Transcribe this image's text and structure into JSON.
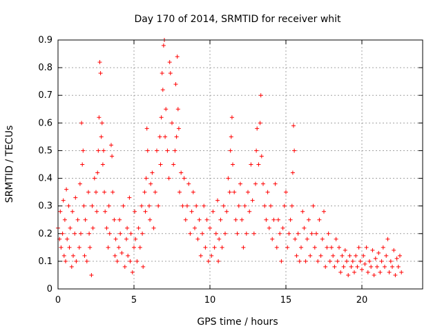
{
  "chart_data": {
    "type": "scatter",
    "title": "Day 170 of 2014, SRMTID for receiver whit",
    "xlabel": "GPS time / hours",
    "ylabel": "SRMTID / TECUs",
    "xlim": [
      0,
      24
    ],
    "ylim": [
      0,
      0.9
    ],
    "xticks": [
      "0",
      "5",
      "10",
      "15",
      "20"
    ],
    "yticks": [
      "0",
      "0.1",
      "0.2",
      "0.3",
      "0.4",
      "0.5",
      "0.6",
      "0.7",
      "0.8",
      "0.9"
    ],
    "grid": true,
    "marker": "+",
    "color": "#ff0000",
    "series": [
      {
        "name": "SRMTID",
        "points": [
          [
            0.0,
            0.22
          ],
          [
            0.1,
            0.18
          ],
          [
            0.15,
            0.28
          ],
          [
            0.2,
            0.15
          ],
          [
            0.3,
            0.2
          ],
          [
            0.35,
            0.32
          ],
          [
            0.4,
            0.12
          ],
          [
            0.45,
            0.25
          ],
          [
            0.5,
            0.1
          ],
          [
            0.55,
            0.36
          ],
          [
            0.6,
            0.18
          ],
          [
            0.7,
            0.3
          ],
          [
            0.75,
            0.15
          ],
          [
            0.8,
            0.22
          ],
          [
            0.9,
            0.08
          ],
          [
            0.95,
            0.28
          ],
          [
            1.0,
            0.12
          ],
          [
            1.1,
            0.2
          ],
          [
            1.15,
            0.33
          ],
          [
            1.2,
            0.1
          ],
          [
            1.3,
            0.25
          ],
          [
            1.4,
            0.15
          ],
          [
            1.45,
            0.38
          ],
          [
            1.5,
            0.2
          ],
          [
            1.55,
            0.6
          ],
          [
            1.6,
            0.45
          ],
          [
            1.65,
            0.5
          ],
          [
            1.7,
            0.3
          ],
          [
            1.75,
            0.12
          ],
          [
            1.8,
            0.25
          ],
          [
            1.9,
            0.1
          ],
          [
            2.0,
            0.35
          ],
          [
            2.05,
            0.2
          ],
          [
            2.1,
            0.15
          ],
          [
            2.2,
            0.05
          ],
          [
            2.25,
            0.3
          ],
          [
            2.3,
            0.22
          ],
          [
            2.4,
            0.4
          ],
          [
            2.5,
            0.35
          ],
          [
            2.55,
            0.28
          ],
          [
            2.6,
            0.42
          ],
          [
            2.65,
            0.5
          ],
          [
            2.7,
            0.62
          ],
          [
            2.75,
            0.82
          ],
          [
            2.8,
            0.78
          ],
          [
            2.85,
            0.55
          ],
          [
            2.9,
            0.6
          ],
          [
            2.95,
            0.45
          ],
          [
            3.0,
            0.5
          ],
          [
            3.05,
            0.35
          ],
          [
            3.1,
            0.28
          ],
          [
            3.2,
            0.22
          ],
          [
            3.3,
            0.15
          ],
          [
            3.35,
            0.3
          ],
          [
            3.4,
            0.2
          ],
          [
            3.5,
            0.52
          ],
          [
            3.55,
            0.48
          ],
          [
            3.6,
            0.35
          ],
          [
            3.7,
            0.25
          ],
          [
            3.75,
            0.12
          ],
          [
            3.8,
            0.18
          ],
          [
            3.9,
            0.1
          ],
          [
            4.0,
            0.15
          ],
          [
            4.05,
            0.25
          ],
          [
            4.1,
            0.2
          ],
          [
            4.2,
            0.13
          ],
          [
            4.3,
            0.3
          ],
          [
            4.4,
            0.08
          ],
          [
            4.5,
            0.18
          ],
          [
            4.55,
            0.22
          ],
          [
            4.6,
            0.12
          ],
          [
            4.7,
            0.33
          ],
          [
            4.75,
            0.1
          ],
          [
            4.8,
            0.2
          ],
          [
            4.9,
            0.06
          ],
          [
            5.0,
            0.15
          ],
          [
            5.05,
            0.28
          ],
          [
            5.1,
            0.18
          ],
          [
            5.2,
            0.1
          ],
          [
            5.3,
            0.22
          ],
          [
            5.4,
            0.15
          ],
          [
            5.5,
            0.3
          ],
          [
            5.55,
            0.2
          ],
          [
            5.6,
            0.08
          ],
          [
            5.7,
            0.35
          ],
          [
            5.75,
            0.28
          ],
          [
            5.8,
            0.4
          ],
          [
            5.85,
            0.58
          ],
          [
            5.9,
            0.5
          ],
          [
            6.0,
            0.3
          ],
          [
            6.05,
            0.25
          ],
          [
            6.1,
            0.38
          ],
          [
            6.2,
            0.42
          ],
          [
            6.3,
            0.22
          ],
          [
            6.4,
            0.35
          ],
          [
            6.5,
            0.5
          ],
          [
            6.6,
            0.3
          ],
          [
            6.7,
            0.55
          ],
          [
            6.75,
            0.45
          ],
          [
            6.8,
            0.62
          ],
          [
            6.85,
            0.78
          ],
          [
            6.9,
            0.72
          ],
          [
            6.95,
            0.88
          ],
          [
            7.0,
            0.9
          ],
          [
            7.05,
            0.55
          ],
          [
            7.1,
            0.65
          ],
          [
            7.2,
            0.5
          ],
          [
            7.3,
            0.4
          ],
          [
            7.35,
            0.82
          ],
          [
            7.4,
            0.78
          ],
          [
            7.5,
            0.6
          ],
          [
            7.6,
            0.45
          ],
          [
            7.7,
            0.5
          ],
          [
            7.75,
            0.74
          ],
          [
            7.8,
            0.55
          ],
          [
            7.85,
            0.84
          ],
          [
            7.9,
            0.65
          ],
          [
            7.95,
            0.58
          ],
          [
            8.0,
            0.35
          ],
          [
            8.1,
            0.42
          ],
          [
            8.2,
            0.3
          ],
          [
            8.3,
            0.4
          ],
          [
            8.4,
            0.25
          ],
          [
            8.5,
            0.3
          ],
          [
            8.6,
            0.38
          ],
          [
            8.7,
            0.2
          ],
          [
            8.8,
            0.28
          ],
          [
            8.9,
            0.35
          ],
          [
            9.0,
            0.22
          ],
          [
            9.1,
            0.3
          ],
          [
            9.2,
            0.18
          ],
          [
            9.3,
            0.25
          ],
          [
            9.4,
            0.12
          ],
          [
            9.5,
            0.2
          ],
          [
            9.6,
            0.3
          ],
          [
            9.7,
            0.15
          ],
          [
            9.8,
            0.25
          ],
          [
            9.9,
            0.1
          ],
          [
            10.0,
            0.22
          ],
          [
            10.1,
            0.12
          ],
          [
            10.2,
            0.28
          ],
          [
            10.3,
            0.15
          ],
          [
            10.4,
            0.2
          ],
          [
            10.5,
            0.32
          ],
          [
            10.55,
            0.1
          ],
          [
            10.6,
            0.18
          ],
          [
            10.7,
            0.25
          ],
          [
            10.8,
            0.15
          ],
          [
            10.9,
            0.3
          ],
          [
            11.0,
            0.2
          ],
          [
            11.1,
            0.28
          ],
          [
            11.2,
            0.4
          ],
          [
            11.3,
            0.35
          ],
          [
            11.35,
            0.5
          ],
          [
            11.4,
            0.55
          ],
          [
            11.45,
            0.62
          ],
          [
            11.5,
            0.45
          ],
          [
            11.6,
            0.35
          ],
          [
            11.7,
            0.25
          ],
          [
            11.8,
            0.2
          ],
          [
            11.9,
            0.3
          ],
          [
            12.0,
            0.38
          ],
          [
            12.1,
            0.25
          ],
          [
            12.2,
            0.15
          ],
          [
            12.3,
            0.3
          ],
          [
            12.4,
            0.2
          ],
          [
            12.5,
            0.35
          ],
          [
            12.6,
            0.28
          ],
          [
            12.7,
            0.45
          ],
          [
            12.8,
            0.32
          ],
          [
            12.9,
            0.2
          ],
          [
            13.0,
            0.38
          ],
          [
            13.05,
            0.5
          ],
          [
            13.1,
            0.58
          ],
          [
            13.2,
            0.45
          ],
          [
            13.3,
            0.6
          ],
          [
            13.35,
            0.7
          ],
          [
            13.4,
            0.48
          ],
          [
            13.5,
            0.38
          ],
          [
            13.6,
            0.3
          ],
          [
            13.7,
            0.25
          ],
          [
            13.8,
            0.35
          ],
          [
            13.9,
            0.22
          ],
          [
            14.0,
            0.3
          ],
          [
            14.1,
            0.18
          ],
          [
            14.2,
            0.25
          ],
          [
            14.3,
            0.38
          ],
          [
            14.4,
            0.15
          ],
          [
            14.5,
            0.25
          ],
          [
            14.6,
            0.2
          ],
          [
            14.7,
            0.1
          ],
          [
            14.8,
            0.22
          ],
          [
            14.9,
            0.3
          ],
          [
            15.0,
            0.35
          ],
          [
            15.1,
            0.15
          ],
          [
            15.2,
            0.2
          ],
          [
            15.3,
            0.25
          ],
          [
            15.4,
            0.3
          ],
          [
            15.45,
            0.42
          ],
          [
            15.5,
            0.59
          ],
          [
            15.55,
            0.5
          ],
          [
            15.6,
            0.18
          ],
          [
            15.7,
            0.12
          ],
          [
            15.8,
            0.2
          ],
          [
            15.9,
            0.1
          ],
          [
            16.0,
            0.15
          ],
          [
            16.1,
            0.28
          ],
          [
            16.2,
            0.22
          ],
          [
            16.3,
            0.1
          ],
          [
            16.4,
            0.18
          ],
          [
            16.5,
            0.25
          ],
          [
            16.6,
            0.12
          ],
          [
            16.7,
            0.2
          ],
          [
            16.8,
            0.3
          ],
          [
            16.9,
            0.15
          ],
          [
            17.0,
            0.2
          ],
          [
            17.1,
            0.1
          ],
          [
            17.2,
            0.25
          ],
          [
            17.3,
            0.12
          ],
          [
            17.4,
            0.18
          ],
          [
            17.5,
            0.28
          ],
          [
            17.6,
            0.08
          ],
          [
            17.7,
            0.15
          ],
          [
            17.8,
            0.2
          ],
          [
            17.9,
            0.1
          ],
          [
            18.0,
            0.15
          ],
          [
            18.1,
            0.12
          ],
          [
            18.2,
            0.08
          ],
          [
            18.3,
            0.18
          ],
          [
            18.4,
            0.1
          ],
          [
            18.5,
            0.15
          ],
          [
            18.6,
            0.06
          ],
          [
            18.7,
            0.12
          ],
          [
            18.8,
            0.08
          ],
          [
            18.9,
            0.14
          ],
          [
            19.0,
            0.1
          ],
          [
            19.1,
            0.05
          ],
          [
            19.2,
            0.12
          ],
          [
            19.3,
            0.08
          ],
          [
            19.4,
            0.1
          ],
          [
            19.5,
            0.06
          ],
          [
            19.6,
            0.12
          ],
          [
            19.7,
            0.08
          ],
          [
            19.8,
            0.15
          ],
          [
            19.9,
            0.1
          ],
          [
            20.0,
            0.07
          ],
          [
            20.1,
            0.12
          ],
          [
            20.2,
            0.09
          ],
          [
            20.3,
            0.15
          ],
          [
            20.4,
            0.06
          ],
          [
            20.5,
            0.1
          ],
          [
            20.6,
            0.08
          ],
          [
            20.7,
            0.14
          ],
          [
            20.8,
            0.05
          ],
          [
            20.9,
            0.11
          ],
          [
            21.0,
            0.08
          ],
          [
            21.1,
            0.13
          ],
          [
            21.2,
            0.06
          ],
          [
            21.3,
            0.1
          ],
          [
            21.4,
            0.15
          ],
          [
            21.5,
            0.08
          ],
          [
            21.6,
            0.12
          ],
          [
            21.7,
            0.18
          ],
          [
            21.8,
            0.06
          ],
          [
            21.9,
            0.1
          ],
          [
            22.0,
            0.08
          ],
          [
            22.1,
            0.14
          ],
          [
            22.2,
            0.05
          ],
          [
            22.3,
            0.11
          ],
          [
            22.4,
            0.08
          ],
          [
            22.5,
            0.12
          ],
          [
            22.6,
            0.06
          ]
        ]
      }
    ]
  }
}
